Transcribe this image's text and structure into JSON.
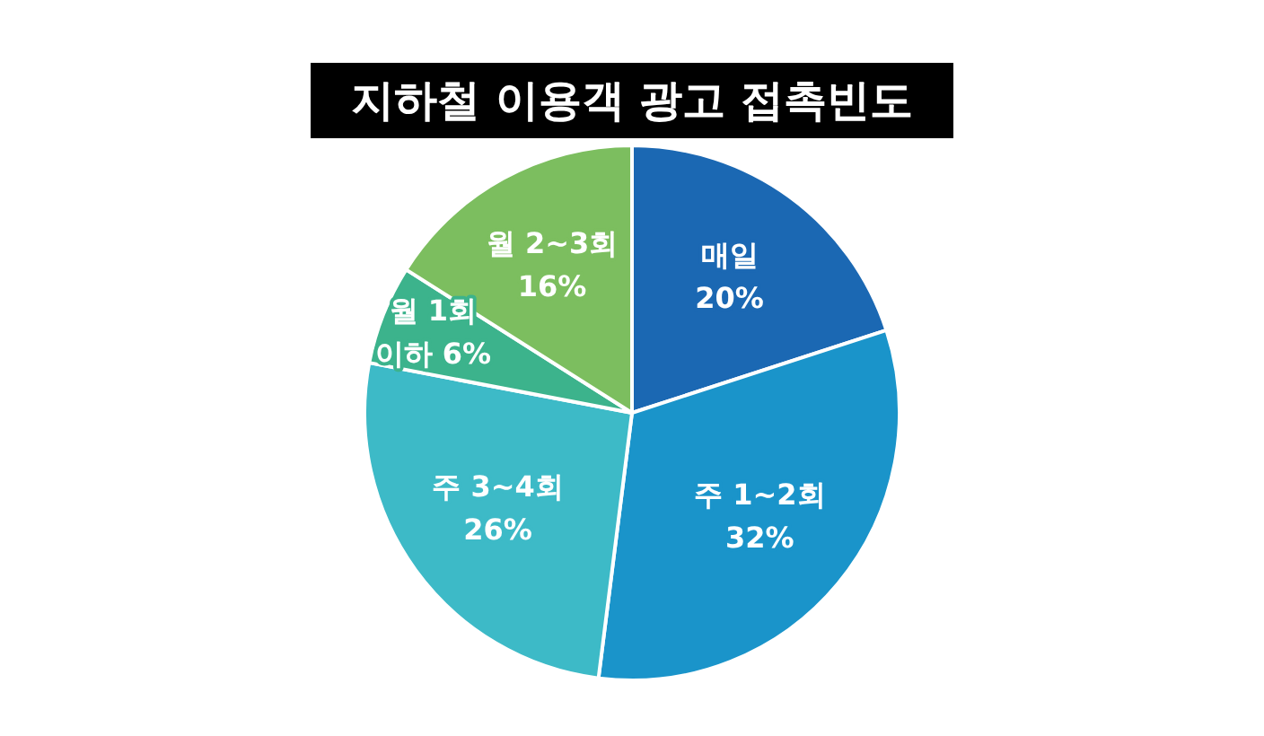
{
  "chart_data": {
    "type": "pie",
    "title": "지하철 이용객 광고 접촉빈도",
    "categories": [
      "매일",
      "주 1~2회",
      "주 3~4회",
      "월 1회 이하",
      "월 2~3회"
    ],
    "values": [
      20,
      32,
      26,
      6,
      16
    ],
    "value_labels": [
      "20%",
      "32%",
      "26%",
      "6%",
      "16%"
    ],
    "colors": [
      "#1b68b3",
      "#1a94ca",
      "#3dbac7",
      "#3cb38c",
      "#7cbe5f"
    ],
    "legend": false
  }
}
